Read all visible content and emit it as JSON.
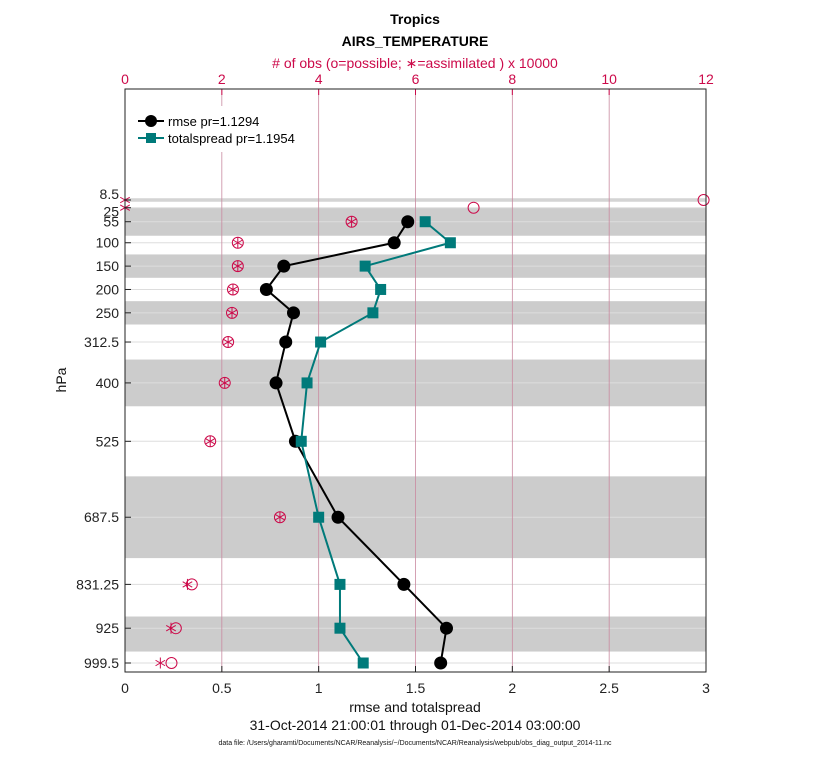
{
  "chart_data": {
    "type": "line",
    "title": "Tropics",
    "subtitle": "AIRS_TEMPERATURE",
    "top_axis_label": "# of obs (o=possible; ∗=assimilated ) x 10000",
    "xlabel": "rmse and totalspread",
    "ylabel": "hPa",
    "date_range": "31-Oct-2014 21:00:01 through 01-Dec-2014 03:00:00",
    "footnote": "data file: /Users/gharamti/Documents/NCAR/Reanalysis/~/Documents/NCAR/Reanalysis/webpub/obs_diag_output_2014-11.nc",
    "xlim": [
      0,
      3
    ],
    "top_xlim": [
      0,
      12
    ],
    "x_ticks": [
      "0",
      "0.5",
      "1",
      "1.5",
      "2",
      "2.5",
      "3"
    ],
    "top_x_ticks": [
      "0",
      "2",
      "4",
      "6",
      "8",
      "10",
      "12"
    ],
    "levels": [
      "8.5",
      "25",
      "55",
      "100",
      "150",
      "200",
      "250",
      "312.5",
      "400",
      "525",
      "687.5",
      "831.25",
      "925",
      "999.5"
    ],
    "level_values": [
      8.5,
      25,
      55,
      100,
      150,
      200,
      250,
      312.5,
      400,
      525,
      687.5,
      831.25,
      925,
      999.5
    ],
    "bands": [
      [
        5,
        12
      ],
      [
        25,
        85
      ],
      [
        125,
        175
      ],
      [
        225,
        275
      ],
      [
        350,
        450
      ],
      [
        600,
        775
      ],
      [
        900,
        975
      ]
    ],
    "series": [
      {
        "name": "rmse pr=1.1294",
        "color": "#000000",
        "marker": "circle",
        "values": [
          null,
          null,
          1.46,
          1.39,
          0.82,
          0.73,
          0.87,
          0.83,
          0.78,
          0.88,
          1.1,
          1.44,
          1.66,
          1.63
        ]
      },
      {
        "name": "totalspread pr=1.1954",
        "color": "#007a7a",
        "marker": "square",
        "values": [
          null,
          null,
          1.55,
          1.68,
          1.24,
          1.32,
          1.28,
          1.01,
          0.94,
          0.91,
          1.0,
          1.11,
          1.11,
          1.23
        ]
      }
    ],
    "obs_possible": [
      11.95,
      7.2,
      4.68,
      2.33,
      2.33,
      2.23,
      2.21,
      2.13,
      2.06,
      1.76,
      3.2,
      1.38,
      1.05,
      0.96
    ],
    "obs_assimilated": [
      0.0,
      0.0,
      4.68,
      2.33,
      2.33,
      2.23,
      2.21,
      2.13,
      2.06,
      1.76,
      3.2,
      1.29,
      0.95,
      0.73
    ],
    "colors": {
      "obs": "#cc0a4a",
      "band": "#cccccc",
      "grid": "#dddddd",
      "top_grid": "#c98aa0"
    }
  }
}
